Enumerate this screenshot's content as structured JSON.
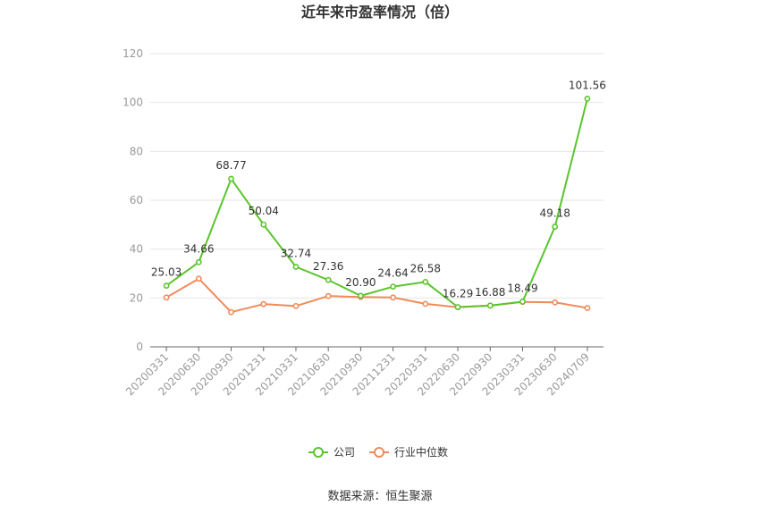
{
  "chart_data": {
    "type": "line",
    "title": "近年来市盈率情况（倍）",
    "categories": [
      "20200331",
      "20200630",
      "20200930",
      "20201231",
      "20210331",
      "20210630",
      "20210930",
      "20211231",
      "20220331",
      "20220630",
      "20220930",
      "20230331",
      "20230630",
      "20240709"
    ],
    "series": [
      {
        "name": "公司",
        "color": "#5ac52c",
        "values": [
          25.03,
          34.66,
          68.77,
          50.04,
          32.74,
          27.36,
          20.9,
          24.64,
          26.58,
          16.29,
          16.88,
          18.49,
          49.18,
          101.56
        ],
        "labels": [
          "25.03",
          "34.66",
          "68.77",
          "50.04",
          "32.74",
          "27.36",
          "20.90",
          "24.64",
          "26.58",
          "16.29",
          "16.88",
          "18.49",
          "49.18",
          "101.56"
        ]
      },
      {
        "name": "行业中位数",
        "color": "#f08b5a",
        "values": [
          20.2,
          27.9,
          14.2,
          17.5,
          16.7,
          20.8,
          20.4,
          20.2,
          17.6,
          16.2,
          16.9,
          18.4,
          18.2,
          15.9
        ]
      }
    ],
    "ylim": [
      0,
      120
    ],
    "yticks": [
      0,
      20,
      40,
      60,
      80,
      100,
      120
    ],
    "grid": true,
    "legend_position": "bottom-center"
  },
  "source_text": "数据来源：恒生聚源"
}
